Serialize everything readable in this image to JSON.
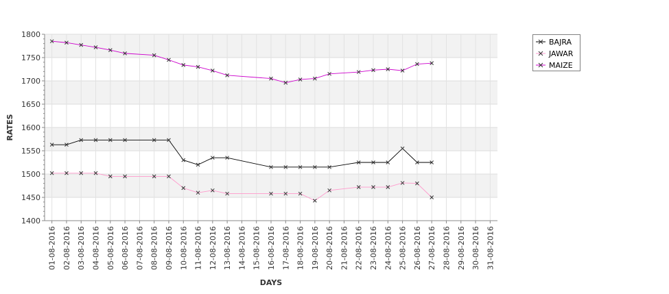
{
  "chart_data": {
    "type": "line",
    "title": "",
    "xlabel": "DAYS",
    "ylabel": "RATES",
    "ylim": [
      1400,
      1800
    ],
    "yticks": [
      1400,
      1450,
      1500,
      1550,
      1600,
      1650,
      1700,
      1750,
      1800
    ],
    "grid": true,
    "legend_position": "top-right",
    "categories": [
      "01-08-2016",
      "02-08-2016",
      "03-08-2016",
      "04-08-2016",
      "05-08-2016",
      "06-08-2016",
      "07-08-2016",
      "08-08-2016",
      "09-08-2016",
      "10-08-2016",
      "11-08-2016",
      "12-08-2016",
      "13-08-2016",
      "14-08-2016",
      "15-08-2016",
      "16-08-2016",
      "17-08-2016",
      "18-08-2016",
      "19-08-2016",
      "20-08-2016",
      "21-08-2016",
      "22-08-2016",
      "23-08-2016",
      "24-08-2016",
      "25-08-2016",
      "26-08-2016",
      "27-08-2016",
      "28-08-2016",
      "29-08-2016",
      "30-08-2016",
      "31-08-2016"
    ],
    "series": [
      {
        "name": "BAJRA",
        "color": "#000000",
        "values": [
          1563,
          1563,
          1573,
          1573,
          1573,
          1573,
          null,
          1573,
          1573,
          1530,
          1520,
          1535,
          1535,
          null,
          null,
          1515,
          1515,
          1515,
          1515,
          1515,
          null,
          1525,
          1525,
          1525,
          1555,
          1525,
          1525,
          null,
          null,
          null,
          null
        ]
      },
      {
        "name": "JAWAR",
        "color": "#ff99cc",
        "values": [
          1502,
          1502,
          1502,
          1502,
          1495,
          1495,
          null,
          1495,
          1495,
          1470,
          1460,
          1465,
          1458,
          null,
          null,
          1458,
          1458,
          1458,
          1443,
          1465,
          null,
          1472,
          1472,
          1472,
          1481,
          1480,
          1450,
          null,
          null,
          null,
          null
        ]
      },
      {
        "name": "MAIZE",
        "color": "#cc00cc",
        "values": [
          1785,
          1782,
          1777,
          1772,
          1766,
          1759,
          null,
          1755,
          1745,
          1734,
          1730,
          1722,
          1712,
          null,
          null,
          1705,
          1696,
          1703,
          1705,
          1715,
          null,
          1719,
          1723,
          1725,
          1722,
          1736,
          1738,
          null,
          null,
          null,
          null
        ]
      }
    ]
  }
}
